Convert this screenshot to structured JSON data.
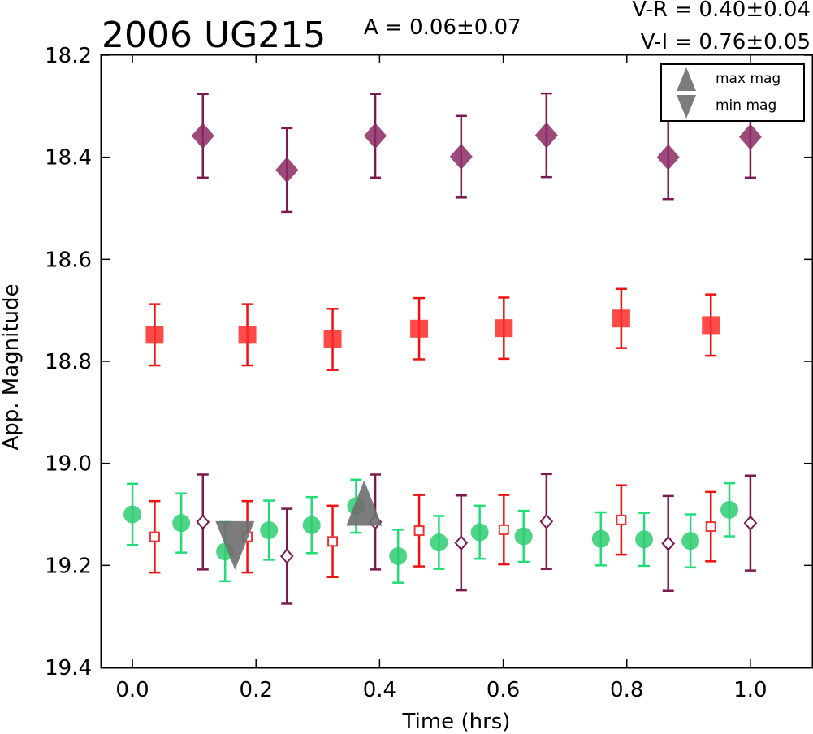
{
  "chart_data": {
    "type": "scatter",
    "title": "2006 UG215",
    "annotations": {
      "amplitude": "A  = 0.06±0.07",
      "v_r": "V-R = 0.40±0.04",
      "v_i": "V-I  = 0.76±0.05"
    },
    "xlabel": "Time (hrs)",
    "ylabel": "App. Magnitude",
    "xlim": [
      -0.05,
      1.1
    ],
    "ylim": [
      19.4,
      18.2
    ],
    "y_inverted": true,
    "x_ticks": [
      "0.0",
      "0.2",
      "0.4",
      "0.6",
      "0.8",
      "1.0"
    ],
    "y_ticks": [
      "18.2",
      "18.4",
      "18.6",
      "18.8",
      "19.0",
      "19.2",
      "19.4"
    ],
    "grid": false,
    "legend": {
      "placement": "top-right",
      "entries": [
        {
          "label": "max mag",
          "marker": "triangle-up"
        },
        {
          "label": "min mag",
          "marker": "triangle-down"
        }
      ]
    },
    "series": [
      {
        "marker": "filled-diamond",
        "color": "#8b2a63",
        "alpha": 0.85,
        "x": [
          0.114,
          0.25,
          0.393,
          0.532,
          0.67,
          0.867,
          1.0
        ],
        "y": [
          18.358,
          18.425,
          18.358,
          18.399,
          18.357,
          18.4,
          18.36
        ],
        "err": [
          0.082,
          0.082,
          0.082,
          0.08,
          0.082,
          0.082,
          0.08
        ],
        "errcolor": "#7a1a4f"
      },
      {
        "marker": "filled-square",
        "color": "#ff2a2a",
        "alpha": 0.85,
        "x": [
          0.036,
          0.186,
          0.324,
          0.464,
          0.601,
          0.791,
          0.936
        ],
        "y": [
          18.748,
          18.748,
          18.757,
          18.736,
          18.735,
          18.716,
          18.729
        ],
        "err": [
          0.06,
          0.06,
          0.06,
          0.06,
          0.06,
          0.058,
          0.06
        ],
        "errcolor": "#ee1111"
      },
      {
        "marker": "filled-circle",
        "color": "#2ecc71",
        "alpha": 0.85,
        "x": [
          0.0,
          0.079,
          0.15,
          0.221,
          0.29,
          0.362,
          0.43,
          0.496,
          0.562,
          0.633,
          0.758,
          0.828,
          0.903,
          0.966
        ],
        "y": [
          19.1,
          19.117,
          19.173,
          19.131,
          19.121,
          19.084,
          19.182,
          19.155,
          19.135,
          19.143,
          19.148,
          19.149,
          19.152,
          19.091
        ],
        "err": [
          0.06,
          0.058,
          0.058,
          0.058,
          0.055,
          0.052,
          0.052,
          0.052,
          0.052,
          0.05,
          0.052,
          0.052,
          0.052,
          0.052
        ],
        "errcolor": "#22dd77"
      },
      {
        "marker": "open-square",
        "color": "#ee3333",
        "alpha": 1,
        "x": [
          0.036,
          0.186,
          0.324,
          0.464,
          0.601,
          0.791,
          0.936
        ],
        "y": [
          19.144,
          19.144,
          19.153,
          19.132,
          19.13,
          19.111,
          19.124
        ],
        "err": [
          0.07,
          0.07,
          0.07,
          0.07,
          0.068,
          0.068,
          0.068
        ],
        "errcolor": "#ee1111"
      },
      {
        "marker": "open-diamond",
        "color": "#7a1a4f",
        "alpha": 1,
        "x": [
          0.114,
          0.25,
          0.393,
          0.532,
          0.67,
          0.867,
          1.0
        ],
        "y": [
          19.115,
          19.182,
          19.115,
          19.156,
          19.114,
          19.157,
          19.117
        ],
        "err": [
          0.093,
          0.093,
          0.093,
          0.093,
          0.093,
          0.093,
          0.093
        ],
        "errcolor": "#7a1a4f"
      },
      {
        "marker": "triangle-down",
        "color": "#6e6e6e",
        "alpha": 0.9,
        "x": [
          0.166
        ],
        "y": [
          19.15
        ]
      },
      {
        "marker": "triangle-up",
        "color": "#6e6e6e",
        "alpha": 0.9,
        "x": [
          0.375
        ],
        "y": [
          19.1
        ]
      }
    ]
  }
}
